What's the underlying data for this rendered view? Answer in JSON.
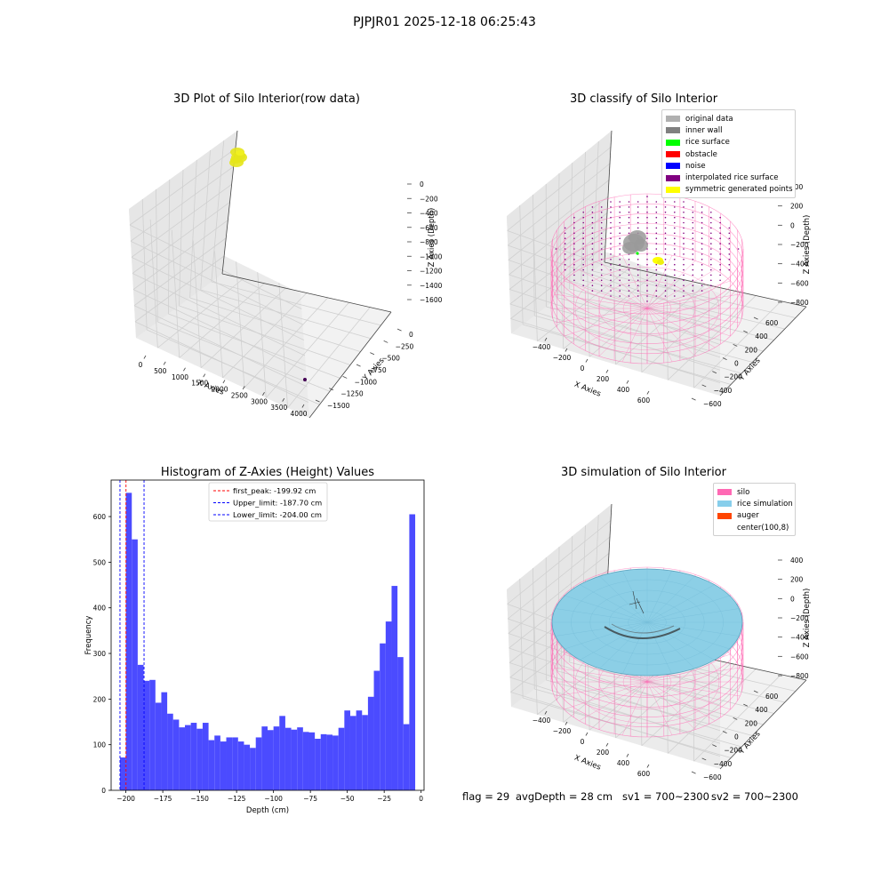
{
  "suptitle": "PJPJR01 2025-12-18 06:25:43",
  "panels": {
    "raw": {
      "title": "3D Plot of Silo Interior(row data)",
      "xlabel": "X Axies",
      "ylabel": "Y Axies",
      "zlabel": "Z Axies (Depth)",
      "xticks": [
        "0",
        "500",
        "1000",
        "1500",
        "2000",
        "2500",
        "3000",
        "3500",
        "4000"
      ],
      "yticks": [
        "0",
        "−250",
        "−500",
        "−750",
        "−1000",
        "−1250",
        "−1500"
      ],
      "zticks": [
        "0",
        "−200",
        "−400",
        "−600",
        "−800",
        "−1000",
        "−1200",
        "−1400",
        "−1600"
      ]
    },
    "classify": {
      "title": "3D classify of Silo Interior",
      "xlabel": "X Axies",
      "ylabel": "Y Axies",
      "zlabel": "Z Axies (Depth)",
      "xticks": [
        "−400",
        "−200",
        "0",
        "200",
        "400",
        "600"
      ],
      "yticks": [
        "600",
        "400",
        "200",
        "0",
        "−200",
        "−400",
        "−600"
      ],
      "zticks": [
        "400",
        "200",
        "0",
        "−200",
        "−400",
        "−600",
        "−800"
      ],
      "legend": [
        {
          "label": "original data",
          "color": "#b0b0b0"
        },
        {
          "label": "inner wall",
          "color": "#808080"
        },
        {
          "label": "rice surface",
          "color": "#00ff00"
        },
        {
          "label": "obstacle",
          "color": "#ff0000"
        },
        {
          "label": "noise",
          "color": "#0000ff"
        },
        {
          "label": "interpolated rice surface",
          "color": "#800080"
        },
        {
          "label": "symmetric generated points",
          "color": "#ffff00"
        }
      ]
    },
    "simulation": {
      "title": "3D simulation of Silo Interior",
      "xlabel": "X Axies",
      "ylabel": "Y Axies",
      "zlabel": "Z Axies (Depth)",
      "xticks": [
        "−400",
        "−200",
        "0",
        "200",
        "400",
        "600"
      ],
      "yticks": [
        "600",
        "400",
        "200",
        "0",
        "−200",
        "−400",
        "−600"
      ],
      "zticks": [
        "400",
        "200",
        "0",
        "−200",
        "−400",
        "−600",
        "−800"
      ],
      "legend": [
        {
          "label": "silo",
          "color": "#ff69b4"
        },
        {
          "label": "rice simulation",
          "color": "#87ceeb"
        },
        {
          "label": "auger",
          "color": "#ff4500"
        },
        {
          "label": "center(100,8)",
          "color": ""
        }
      ]
    }
  },
  "footer": {
    "flag": "flag = 29",
    "avg": "avgDepth = 28 cm",
    "sv1": "sv1 = 700~2300",
    "sv2": "sv2 = 700~2300"
  },
  "chart_data": {
    "type": "bar",
    "title": "Histogram of Z-Axies (Height) Values",
    "xlabel": "Depth (cm)",
    "ylabel": "Frequency",
    "xlim": [
      -210,
      2
    ],
    "ylim": [
      0,
      680
    ],
    "xticks": [
      -200,
      -175,
      -150,
      -125,
      -100,
      -75,
      -50,
      -25,
      0
    ],
    "yticks": [
      0,
      100,
      200,
      300,
      400,
      500,
      600
    ],
    "bin_start": -204,
    "bin_width": 4,
    "values": [
      72,
      652,
      550,
      275,
      240,
      242,
      192,
      215,
      168,
      155,
      138,
      143,
      148,
      135,
      148,
      110,
      120,
      107,
      116,
      116,
      107,
      100,
      93,
      116,
      140,
      132,
      140,
      163,
      137,
      133,
      138,
      128,
      127,
      113,
      123,
      122,
      120,
      137,
      175,
      163,
      175,
      165,
      205,
      262,
      322,
      370,
      448,
      292,
      145,
      605
    ],
    "vlines": [
      {
        "label": "first_peak: -199.92 cm",
        "x": -199.92,
        "color": "#ff0000"
      },
      {
        "label": "Upper_limit: -187.70 cm",
        "x": -187.7,
        "color": "#0000ff"
      },
      {
        "label": "Lower_limit: -204.00 cm",
        "x": -204.0,
        "color": "#0000ff"
      }
    ],
    "bar_color": "#4b4bff"
  }
}
